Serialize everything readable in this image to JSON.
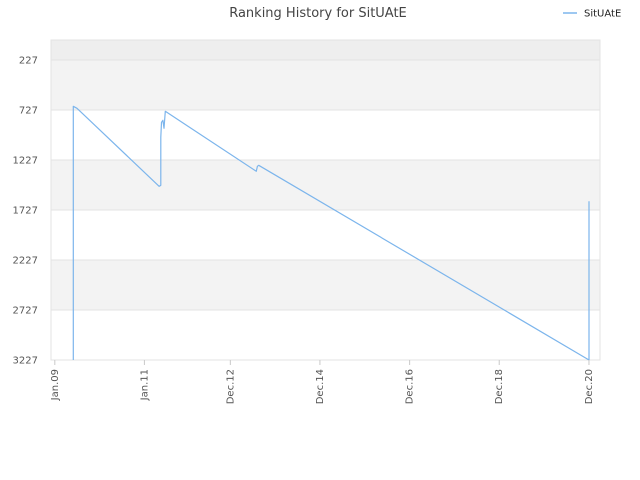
{
  "chart_data": {
    "type": "line",
    "title": "Ranking History for SitUAtE",
    "xlabel": "",
    "ylabel": "",
    "legend": {
      "position": "top-right",
      "entries": [
        "SitUAtE"
      ]
    },
    "grid": true,
    "y_axis": {
      "inverted": true,
      "range": [
        27,
        3227
      ],
      "ticks": [
        227,
        727,
        1227,
        1727,
        2227,
        2727,
        3227
      ]
    },
    "x_axis": {
      "range": [
        "2008-12-01",
        "2021-03-01"
      ],
      "ticks": [
        {
          "label": "Jan.09",
          "date": "2009-01-01"
        },
        {
          "label": "Jan.11",
          "date": "2011-01-01"
        },
        {
          "label": "Dec.12",
          "date": "2012-12-01"
        },
        {
          "label": "Dec.14",
          "date": "2014-12-01"
        },
        {
          "label": "Dec.16",
          "date": "2016-12-01"
        },
        {
          "label": "Dec.18",
          "date": "2018-12-01"
        },
        {
          "label": "Dec.20",
          "date": "2020-12-01"
        }
      ]
    },
    "series": [
      {
        "name": "SitUAtE",
        "color": "#7cb5ec",
        "points": [
          {
            "x": "2009-06-01",
            "y": 3227
          },
          {
            "x": "2009-06-01",
            "y": 690
          },
          {
            "x": "2009-07-01",
            "y": 710
          },
          {
            "x": "2011-05-01",
            "y": 1490
          },
          {
            "x": "2011-05-15",
            "y": 1480
          },
          {
            "x": "2011-05-15",
            "y": 1000
          },
          {
            "x": "2011-05-20",
            "y": 850
          },
          {
            "x": "2011-06-01",
            "y": 830
          },
          {
            "x": "2011-06-10",
            "y": 910
          },
          {
            "x": "2011-06-20",
            "y": 740
          },
          {
            "x": "2013-07-01",
            "y": 1340
          },
          {
            "x": "2013-07-10",
            "y": 1290
          },
          {
            "x": "2013-07-20",
            "y": 1280
          },
          {
            "x": "2020-12-01",
            "y": 3227
          },
          {
            "x": "2020-12-01",
            "y": 1640
          }
        ]
      }
    ]
  }
}
